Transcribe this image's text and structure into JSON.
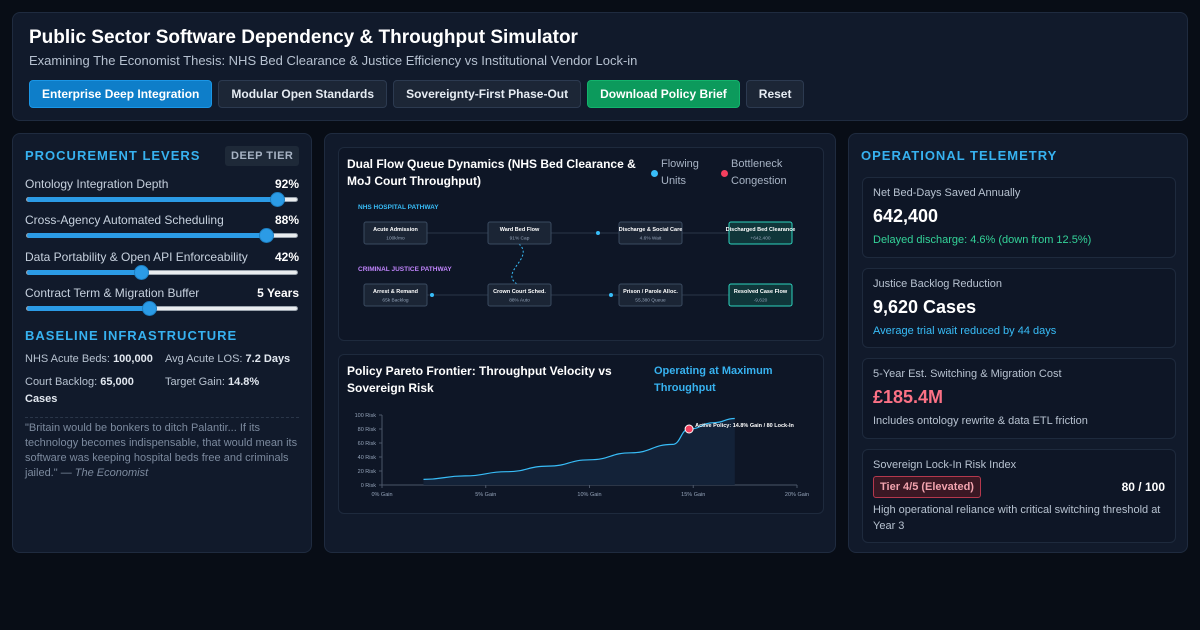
{
  "header": {
    "title": "Public Sector Software Dependency & Throughput Simulator",
    "subtitle": "Examining The Economist Thesis: NHS Bed Clearance & Justice Efficiency vs Institutional Vendor Lock-in",
    "buttons": [
      {
        "label": "Enterprise Deep Integration",
        "state": "active"
      },
      {
        "label": "Modular Open Standards",
        "state": "default"
      },
      {
        "label": "Sovereignty-First Phase-Out",
        "state": "default"
      },
      {
        "label": "Download Policy Brief",
        "state": "primary"
      },
      {
        "label": "Reset",
        "state": "default"
      }
    ]
  },
  "levers": {
    "title": "PROCUREMENT LEVERS",
    "badge": "DEEP TIER",
    "items": [
      {
        "label": "Ontology Integration Depth",
        "value_text": "92%",
        "fraction": 0.92
      },
      {
        "label": "Cross-Agency Automated Scheduling",
        "value_text": "88%",
        "fraction": 0.88
      },
      {
        "label": "Data Portability & Open API Enforceability",
        "value_text": "42%",
        "fraction": 0.42
      },
      {
        "label": "Contract Term & Migration Buffer",
        "value_text": "5 Years",
        "fraction": 0.45
      }
    ]
  },
  "baseline": {
    "title": "BASELINE INFRASTRUCTURE",
    "beds_label": "NHS Acute Beds:",
    "beds_value": "100,000",
    "los_label": "Avg Acute LOS:",
    "los_value": "7.2 Days",
    "backlog_label": "Court Backlog:",
    "backlog_value": "65,000 Cases",
    "gain_label": "Target Gain:",
    "gain_value": "14.8%",
    "quote": "\"Britain would be bonkers to ditch Palantir... If its technology becomes indispensable, that would mean its software was keeping hospital beds free and criminals jailed.\" — ",
    "quote_source": "The Economist"
  },
  "flow": {
    "title": "Dual Flow Queue Dynamics (NHS Bed Clearance & MoJ Court Throughput)",
    "legend_flowing": "Flowing Units",
    "legend_bottleneck": "Bottleneck Congestion",
    "colors": {
      "flowing": "#38bdf8",
      "bottleneck": "#f43f5e",
      "justice": "#c084fc",
      "resolved": "#2dd4bf"
    },
    "nhs_pathway_label": "NHS HOSPITAL PATHWAY",
    "justice_pathway_label": "CRIMINAL JUSTICE PATHWAY",
    "nhs_nodes": [
      {
        "title": "Acute Admission",
        "detail": "100k/mo"
      },
      {
        "title": "Ward Bed Flow",
        "detail": "91% Cap"
      },
      {
        "title": "Discharge & Social Care",
        "detail": "4.6% Wait"
      },
      {
        "title": "Discharged Bed Clearance",
        "detail": "+642,400"
      }
    ],
    "justice_nodes": [
      {
        "title": "Arrest & Remand",
        "detail": "65k Backlog"
      },
      {
        "title": "Crown Court Sched.",
        "detail": "88% Auto"
      },
      {
        "title": "Prison / Parole Alloc.",
        "detail": "55,380 Queue"
      },
      {
        "title": "Resolved Case Flow",
        "detail": "-9,620"
      }
    ]
  },
  "pareto": {
    "title": "Policy Pareto Frontier: Throughput Velocity vs Sovereign Risk",
    "status": "Operating at Maximum Throughput",
    "chart_data": {
      "type": "area",
      "x_ticks": [
        "0% Gain",
        "5% Gain",
        "10% Gain",
        "15% Gain",
        "20% Gain"
      ],
      "y_ticks": [
        "0 Risk",
        "20 Risk",
        "40 Risk",
        "60 Risk",
        "80 Risk",
        "100 Risk"
      ],
      "xlim": [
        0,
        20
      ],
      "ylim": [
        0,
        100
      ],
      "x": [
        2,
        4,
        6,
        8,
        10,
        12,
        14,
        14.8,
        16,
        17
      ],
      "y": [
        8,
        13,
        19,
        27,
        36,
        46,
        58,
        80,
        89,
        95
      ],
      "active_point": {
        "x": 14.8,
        "y": 80,
        "label": "Active Policy: 14.8% Gain / 80 Lock-In"
      },
      "colors": {
        "line": "#38bdf8",
        "point": "#f43f5e"
      }
    }
  },
  "telemetry": {
    "title": "OPERATIONAL TELEMETRY",
    "cards": [
      {
        "label": "Net Bed-Days Saved Annually",
        "value": "642,400",
        "note": "Delayed discharge: 4.6% (down from 12.5%)",
        "note_color": "#34d399"
      },
      {
        "label": "Justice Backlog Reduction",
        "value": "9,620 Cases",
        "note": "Average trial wait reduced by 44 days",
        "note_color": "#38bdf8"
      },
      {
        "label": "5-Year Est. Switching & Migration Cost",
        "value": "£185.4M",
        "note": "Includes ontology rewrite & data ETL friction",
        "note_color": "#b7c2d0",
        "value_color": "#fb7185"
      },
      {
        "label": "Sovereign Lock-In Risk Index",
        "badge": "Tier 4/5 (Elevated)",
        "score": "80 / 100",
        "note": "High operational reliance with critical switching threshold at Year 3"
      }
    ]
  }
}
